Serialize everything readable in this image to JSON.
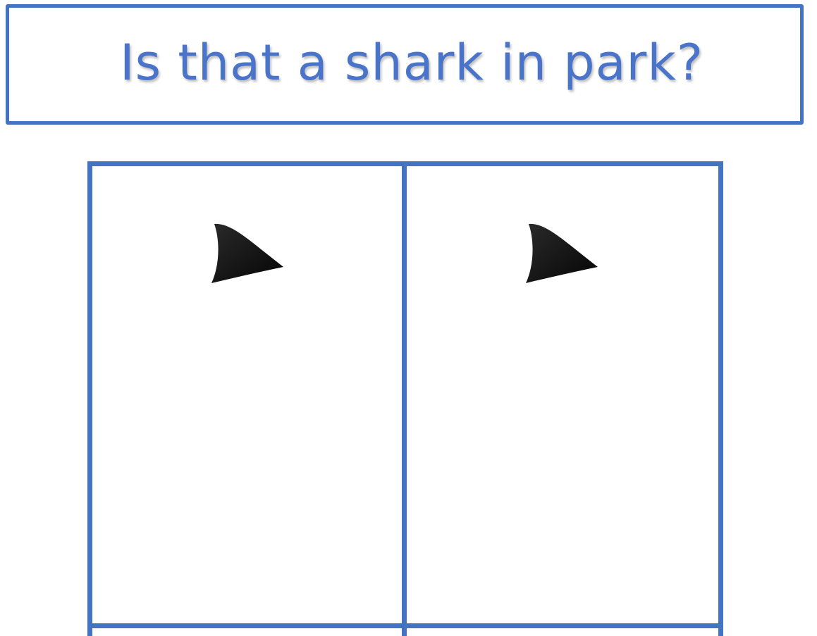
{
  "title": "Is that a shark in park?",
  "colors": {
    "accent": "#4472C4",
    "title_text": "#4A74C9",
    "fin": "#111111"
  },
  "cells": [
    {
      "icon": "shark-fin-icon"
    },
    {
      "icon": "shark-fin-icon"
    }
  ]
}
